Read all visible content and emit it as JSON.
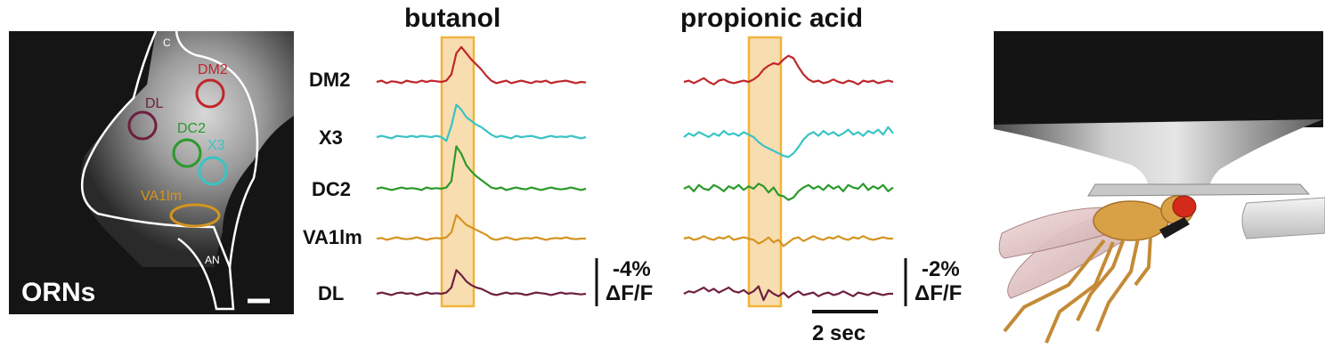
{
  "panel_a": {
    "label": "ORNs",
    "c_label": "C",
    "an_label": "AN",
    "rois": [
      {
        "name": "DM2",
        "color": "#c0262c"
      },
      {
        "name": "DL",
        "color": "#6e1f3f"
      },
      {
        "name": "DC2",
        "color": "#2a9a2a"
      },
      {
        "name": "X3",
        "color": "#38c4c4"
      },
      {
        "name": "VA1lm",
        "color": "#d49420"
      }
    ]
  },
  "chart_data": [
    {
      "type": "line",
      "title": "butanol",
      "stimulus_color": "#f8ddb0",
      "scale_bar": {
        "value": "-4%",
        "unit": "ΔF/F"
      },
      "series": [
        {
          "name": "DM2",
          "color": "#c0262c",
          "values": [
            0,
            0.1,
            -0.1,
            0.05,
            0,
            -0.1,
            0.1,
            0,
            -0.05,
            0.1,
            0,
            0.1,
            0.05,
            0,
            0.1,
            0.6,
            2.3,
            2.8,
            2.3,
            1.8,
            1.4,
            1.0,
            0.5,
            0.1,
            -0.1,
            0,
            0.1,
            -0.1,
            0,
            0.1,
            0,
            -0.1,
            0.05,
            0,
            0.1,
            -0.1,
            0,
            0.05,
            0.1,
            0,
            -0.1,
            0,
            -0.05
          ]
        },
        {
          "name": "X3",
          "color": "#38c4c4",
          "values": [
            0,
            0.1,
            0,
            -0.1,
            0.1,
            0.05,
            0,
            0.1,
            0,
            0.1,
            0.05,
            0,
            0.1,
            0,
            -0.3,
            0.9,
            2.6,
            2.2,
            1.6,
            1.3,
            1.0,
            0.8,
            0.5,
            0.2,
            0,
            0.1,
            0,
            -0.1,
            0.1,
            0,
            0.05,
            0.1,
            0,
            -0.1,
            0,
            0.1,
            0,
            0.05,
            0,
            0.1,
            0,
            -0.1,
            0
          ]
        },
        {
          "name": "DC2",
          "color": "#2a9a2a",
          "values": [
            0,
            0.1,
            0,
            -0.1,
            0,
            0.1,
            0,
            0.05,
            0,
            -0.1,
            0.1,
            0,
            0.05,
            0,
            0.1,
            0.6,
            3.4,
            2.8,
            1.9,
            1.4,
            1.0,
            0.7,
            0.4,
            0.1,
            0,
            0.1,
            -0.1,
            0,
            0.1,
            0,
            -0.05,
            0.1,
            0,
            -0.1,
            0,
            0.1,
            0,
            -0.05,
            0,
            0.1,
            0,
            -0.1,
            0
          ]
        },
        {
          "name": "VA1lm",
          "color": "#d49420",
          "values": [
            0,
            0.05,
            -0.1,
            0,
            0.1,
            0,
            -0.05,
            0,
            0.1,
            0,
            -0.1,
            0,
            0.05,
            0,
            0.1,
            0.5,
            1.9,
            1.5,
            1.1,
            0.9,
            0.7,
            0.5,
            0.3,
            0,
            -0.1,
            0,
            0.1,
            0,
            -0.1,
            0,
            0.05,
            0,
            0.1,
            0,
            -0.1,
            0,
            0.05,
            0,
            0.1,
            0,
            -0.05,
            0,
            0
          ]
        },
        {
          "name": "DL",
          "color": "#6e1f3f",
          "values": [
            0,
            0.1,
            0,
            -0.1,
            0.05,
            0.1,
            0,
            0.05,
            -0.1,
            0,
            0.1,
            0,
            0.05,
            0,
            0.1,
            0.5,
            1.9,
            1.5,
            1.0,
            0.7,
            0.5,
            0.4,
            0.2,
            0,
            -0.1,
            0,
            0.1,
            0,
            0.05,
            0,
            -0.1,
            0,
            0.1,
            0.05,
            0,
            -0.1,
            0,
            0.1,
            0,
            0.05,
            0,
            -0.05,
            0
          ]
        }
      ]
    },
    {
      "type": "line",
      "title": "propionic acid",
      "stimulus_color": "#f8ddb0",
      "scale_bar": {
        "value": "-2%",
        "unit": "ΔF/F"
      },
      "time_bar": "2 sec",
      "series": [
        {
          "name": "DM2",
          "color": "#c0262c",
          "values": [
            0,
            0.1,
            -0.1,
            0.1,
            0.3,
            0,
            -0.2,
            0.1,
            0.2,
            0,
            -0.1,
            0,
            0.1,
            0,
            0.2,
            0.5,
            1.0,
            1.3,
            1.5,
            1.4,
            1.8,
            2.1,
            1.9,
            1.2,
            0.6,
            0.2,
            0,
            0.1,
            -0.1,
            0,
            0.2,
            0,
            -0.1,
            0.1,
            0,
            -0.2,
            0.1,
            0,
            0.1,
            -0.1,
            0,
            0.1,
            0
          ]
        },
        {
          "name": "X3",
          "color": "#38c4c4",
          "values": [
            0,
            0.3,
            0.1,
            0.4,
            0.2,
            0,
            0.3,
            0.1,
            0.5,
            0.2,
            0.3,
            0.1,
            0.4,
            0.2,
            0,
            -0.4,
            -0.7,
            -0.9,
            -1.1,
            -1.3,
            -1.5,
            -1.6,
            -1.3,
            -0.8,
            -0.2,
            0.2,
            0.4,
            0.1,
            0.5,
            0.2,
            0.4,
            0.1,
            0.3,
            0.6,
            0.2,
            0.4,
            0.1,
            0.5,
            0.3,
            0.6,
            0.2,
            0.8,
            0.3
          ]
        },
        {
          "name": "DC2",
          "color": "#2a9a2a",
          "values": [
            0,
            0.2,
            -0.2,
            0.3,
            0,
            -0.1,
            0.3,
            0.1,
            -0.2,
            0.2,
            0,
            0.3,
            -0.1,
            0.2,
            0,
            0.4,
            0.2,
            -0.3,
            0.1,
            -0.5,
            -0.6,
            -0.9,
            -0.7,
            -0.2,
            0.1,
            0.3,
            0,
            0.2,
            -0.1,
            0.3,
            0,
            0.2,
            -0.2,
            0.3,
            0.1,
            0,
            0.4,
            -0.1,
            0.2,
            0,
            0.3,
            -0.2,
            0.1
          ]
        },
        {
          "name": "VA1lm",
          "color": "#d49420",
          "values": [
            0,
            0.1,
            -0.1,
            0,
            0.2,
            0,
            -0.1,
            0.1,
            0,
            0.2,
            -0.1,
            0,
            0.1,
            0,
            -0.1,
            -0.4,
            -0.2,
            0.1,
            -0.3,
            -0.1,
            -0.6,
            -0.3,
            0,
            0.1,
            -0.2,
            0,
            0.2,
            0,
            -0.1,
            0.1,
            0,
            0.2,
            0,
            -0.1,
            0.1,
            0,
            0.2,
            0,
            -0.1,
            0,
            0.1,
            0,
            0
          ]
        },
        {
          "name": "DL",
          "color": "#6e1f3f",
          "values": [
            0,
            0.2,
            0.1,
            0.3,
            0.5,
            0.2,
            0.4,
            0.1,
            0.3,
            0.5,
            0.2,
            0.1,
            0.3,
            0,
            0.2,
            0.6,
            -0.5,
            0.3,
            0,
            -0.2,
            0.1,
            -0.3,
            0,
            0.2,
            -0.1,
            0,
            0.1,
            -0.2,
            0,
            0.1,
            -0.1,
            0,
            0.2,
            0,
            -0.2,
            0.1,
            0,
            -0.1,
            0.1,
            0,
            -0.1,
            0,
            0
          ]
        }
      ]
    }
  ]
}
